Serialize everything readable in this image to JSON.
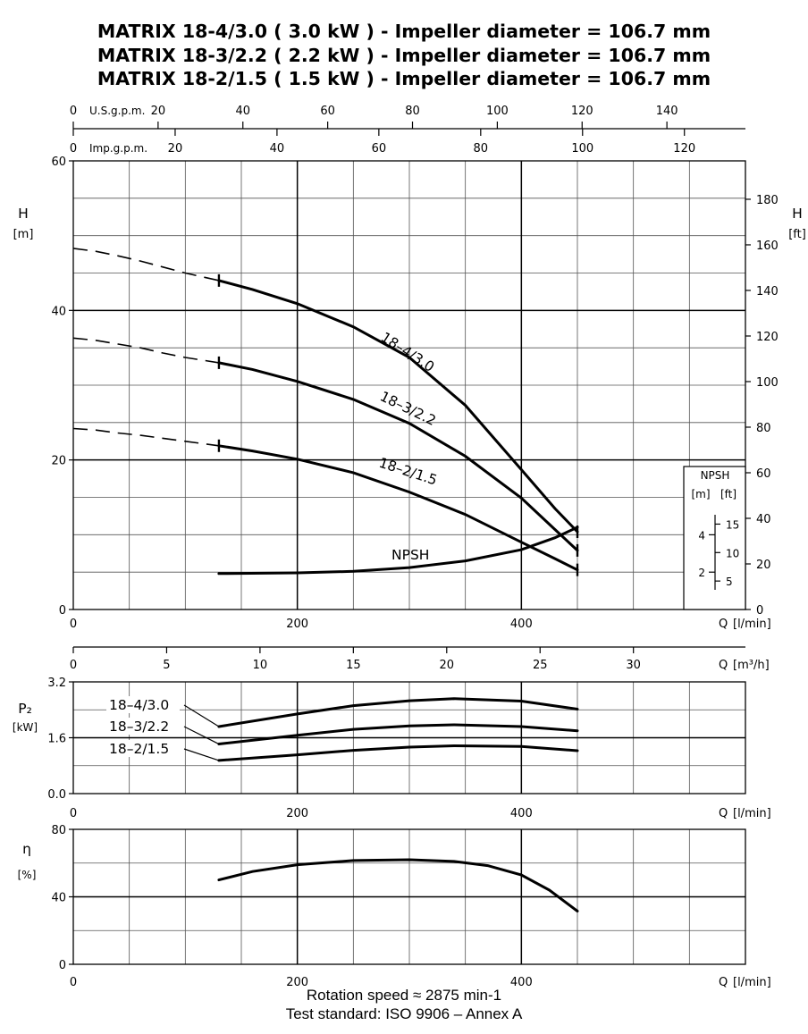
{
  "titles": [
    "MATRIX 18-4/3.0 ( 3.0 kW ) - Impeller diameter = 106.7 mm",
    "MATRIX 18-3/2.2 ( 2.2 kW ) - Impeller diameter = 106.7 mm",
    "MATRIX 18-2/1.5 ( 1.5 kW ) - Impeller diameter = 106.7 mm"
  ],
  "footer": {
    "line1": "Rotation speed ≈ 2875 min-1",
    "line2": "Test standard: ISO 9906 – Annex A"
  },
  "chart_data": [
    {
      "type": "line",
      "panel": "head",
      "ylabel": "H",
      "yunit": "[m]",
      "y2label": "H",
      "y2unit": "[ft]",
      "xlabel": "Q",
      "xunit": "[l/min]",
      "xlim": [
        0,
        600
      ],
      "ylim": [
        0,
        60
      ],
      "x_ticks": [
        0,
        200,
        400
      ],
      "y_ticks": [
        0,
        20,
        40,
        60
      ],
      "y2_ticks": [
        0,
        20,
        40,
        60,
        80,
        100,
        120,
        140,
        160,
        180
      ],
      "y2_factor": 3.2808,
      "top_axes": [
        {
          "label": "U.S.g.p.m.",
          "ticks": [
            0,
            20,
            40,
            60,
            80,
            100,
            120,
            140
          ],
          "lpm_per_unit": 3.785
        },
        {
          "label": "Imp.g.p.m.",
          "ticks": [
            0,
            20,
            40,
            60,
            80,
            100,
            120
          ],
          "lpm_per_unit": 4.546
        }
      ],
      "series": [
        {
          "name": "18–4/3.0",
          "dashed_x": [
            0,
            20,
            40,
            60,
            80,
            100,
            130
          ],
          "dashed_y": [
            48.3,
            47.9,
            47.3,
            46.6,
            45.8,
            45.0,
            44.0
          ],
          "x": [
            130,
            160,
            200,
            250,
            300,
            350,
            400,
            430,
            450
          ],
          "y": [
            44.0,
            42.8,
            40.9,
            37.8,
            33.7,
            27.3,
            18.7,
            13.5,
            10.4
          ]
        },
        {
          "name": "18–3/2.2",
          "dashed_x": [
            0,
            20,
            40,
            60,
            80,
            100,
            130
          ],
          "dashed_y": [
            36.3,
            36.0,
            35.5,
            35.0,
            34.3,
            33.7,
            33.0
          ],
          "x": [
            130,
            160,
            200,
            250,
            300,
            350,
            400,
            430,
            450
          ],
          "y": [
            33.0,
            32.1,
            30.5,
            28.1,
            24.9,
            20.5,
            14.9,
            10.7,
            7.9
          ]
        },
        {
          "name": "18–2/1.5",
          "dashed_x": [
            0,
            20,
            40,
            60,
            80,
            100,
            130
          ],
          "dashed_y": [
            24.2,
            24.0,
            23.6,
            23.3,
            22.9,
            22.5,
            21.9
          ],
          "x": [
            130,
            160,
            200,
            250,
            300,
            350,
            400,
            430,
            450
          ],
          "y": [
            21.9,
            21.2,
            20.1,
            18.3,
            15.7,
            12.7,
            9.0,
            6.8,
            5.3
          ]
        }
      ],
      "npsh": {
        "name": "NPSH",
        "x": [
          130,
          200,
          250,
          300,
          350,
          400,
          430,
          450
        ],
        "y": [
          4.8,
          4.9,
          5.1,
          5.6,
          6.5,
          8.0,
          9.6,
          11.0
        ]
      },
      "npsh_inset": {
        "title": "NPSH",
        "units_m": "[m]",
        "units_ft": "[ft]",
        "m_ticks": [
          2,
          4
        ],
        "ft_ticks": [
          5,
          10,
          15
        ]
      }
    },
    {
      "type": "line",
      "panel": "m3h_axis",
      "xlabel": "Q",
      "xunit": "[m³/h]",
      "x_ticks": [
        0,
        5,
        10,
        15,
        20,
        25,
        30
      ],
      "lpm_per_unit": 16.667
    },
    {
      "type": "line",
      "panel": "power",
      "ylabel": "P₂",
      "yunit": "[kW]",
      "xlabel": "Q",
      "xunit": "[l/min]",
      "xlim": [
        0,
        600
      ],
      "ylim": [
        0,
        3.2
      ],
      "y_tick_labels": [
        "0.0",
        "1.6",
        "3.2"
      ],
      "x_ticks": [
        0,
        200,
        400
      ],
      "series": [
        {
          "name": "18–4/3.0",
          "x": [
            130,
            200,
            250,
            300,
            340,
            400,
            450
          ],
          "y": [
            1.92,
            2.28,
            2.52,
            2.66,
            2.72,
            2.65,
            2.42
          ]
        },
        {
          "name": "18–3/2.2",
          "x": [
            130,
            200,
            250,
            300,
            340,
            400,
            450
          ],
          "y": [
            1.42,
            1.67,
            1.84,
            1.94,
            1.97,
            1.92,
            1.8
          ]
        },
        {
          "name": "18–2/1.5",
          "x": [
            130,
            200,
            250,
            300,
            340,
            400,
            450
          ],
          "y": [
            0.95,
            1.11,
            1.24,
            1.33,
            1.37,
            1.35,
            1.23
          ]
        }
      ]
    },
    {
      "type": "line",
      "panel": "efficiency",
      "ylabel": "η",
      "yunit": "[%]",
      "xlabel": "Q",
      "xunit": "[l/min]",
      "xlim": [
        0,
        600
      ],
      "ylim": [
        0,
        80
      ],
      "y_ticks": [
        0,
        40,
        80
      ],
      "x_ticks": [
        0,
        200,
        400
      ],
      "series": [
        {
          "name": "efficiency",
          "x": [
            130,
            160,
            200,
            250,
            300,
            340,
            370,
            400,
            425,
            450
          ],
          "y": [
            50,
            55,
            59,
            61.5,
            62,
            61,
            58.5,
            53,
            44,
            31.5
          ]
        }
      ]
    }
  ]
}
